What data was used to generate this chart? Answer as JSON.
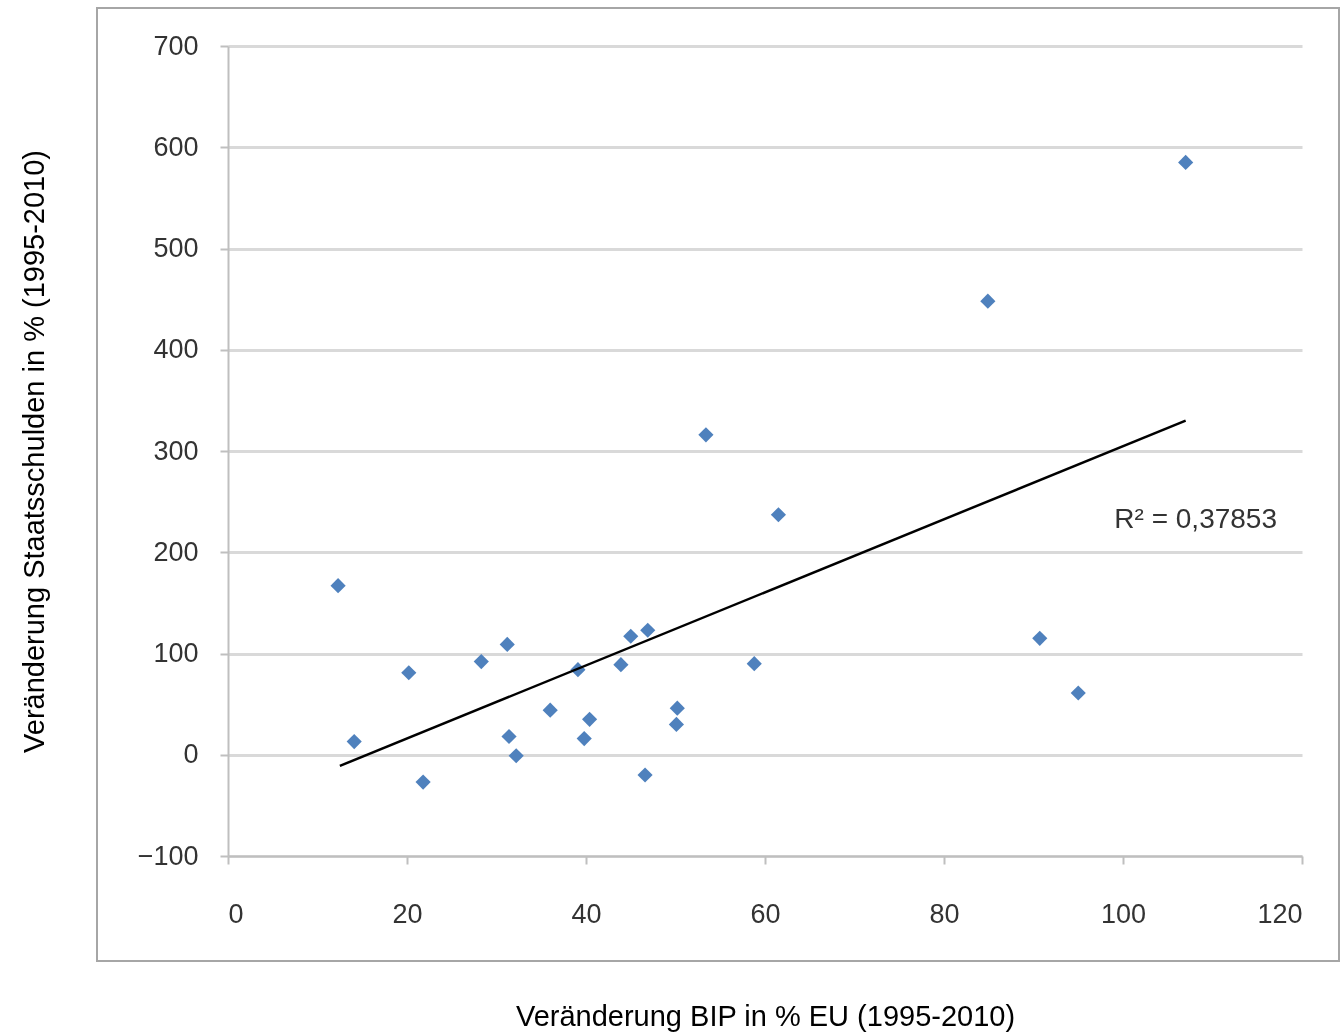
{
  "chart_data": {
    "type": "scatter",
    "xlabel": "Veränderung BIP in % EU (1995-2010)",
    "ylabel": "Veränderung Staatsschulden in % (1995-2010)",
    "series": [
      {
        "marker": "diamond",
        "color": "#4f81bd",
        "x": [
          12.3,
          14.1,
          20.2,
          21.8,
          28.3,
          31.2,
          31.4,
          32.2,
          36.0,
          39.1,
          39.8,
          40.4,
          43.9,
          45.0,
          46.9,
          46.6,
          50.2,
          50.1,
          53.4,
          58.8,
          61.5,
          84.9,
          90.7,
          95.0,
          107.0
        ],
        "values": [
          167,
          13,
          81,
          -27,
          92,
          109,
          18,
          -1,
          44,
          84,
          16,
          35,
          89,
          117,
          123,
          -20,
          46,
          30,
          316,
          90,
          237,
          448,
          115,
          61,
          585
        ]
      },
      {
        "type": "line",
        "marker": "none",
        "color": "#000000",
        "x": [
          12.5,
          107
        ],
        "values": [
          -11,
          330
        ]
      }
    ],
    "annotations": [
      "R² = 0,37853"
    ],
    "xlim": [
      0,
      120
    ],
    "xticks": [
      0,
      20,
      40,
      60,
      80,
      100,
      120
    ],
    "ylim": [
      -100,
      700
    ],
    "yticks": [
      -100,
      0,
      100,
      200,
      300,
      400,
      500,
      600,
      700
    ],
    "grid": "y",
    "legend": false
  }
}
